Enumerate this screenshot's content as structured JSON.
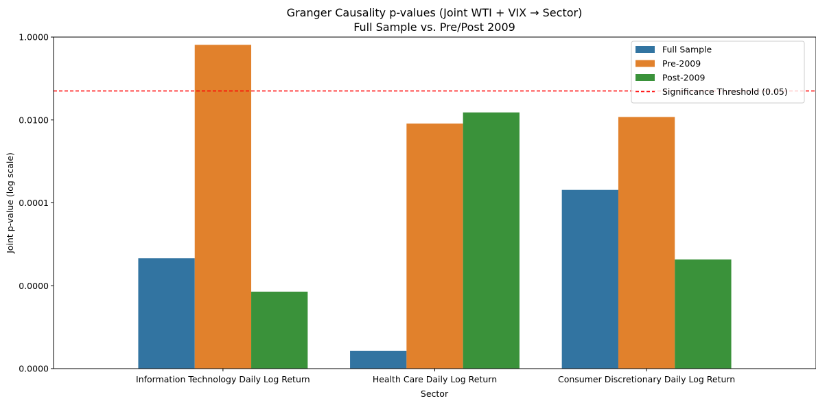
{
  "chart_data": {
    "type": "bar",
    "title": "Granger Causality p-values (Joint WTI + VIX → Sector)",
    "subtitle": "Full Sample vs. Pre/Post 2009",
    "xlabel": "Sector",
    "ylabel": "Joint p-value (log scale)",
    "yscale": "log",
    "ylim": [
      1e-08,
      1
    ],
    "yticks": [
      1e-08,
      1e-06,
      0.0001,
      0.01,
      1
    ],
    "ytick_labels": [
      "0.0000",
      "0.0000",
      "0.0001",
      "0.0100",
      "1.0000"
    ],
    "categories": [
      "Information Technology Daily Log Return",
      "Health Care Daily Log Return",
      "Consumer Discretionary Daily Log Return"
    ],
    "series": [
      {
        "name": "Full Sample",
        "color": "#3274a1",
        "values": [
          4.6e-06,
          2.7e-08,
          0.000205
        ]
      },
      {
        "name": "Pre-2009",
        "color": "#e1812c",
        "values": [
          0.65,
          0.0082,
          0.0118
        ]
      },
      {
        "name": "Post-2009",
        "color": "#3a923a",
        "values": [
          7.2e-07,
          0.0152,
          4.3e-06
        ]
      }
    ],
    "threshold": {
      "name": "Significance Threshold (0.05)",
      "value": 0.05,
      "color": "#ff0000",
      "style": "dashed"
    },
    "legend": {
      "position": "top-right"
    },
    "grid": false
  }
}
